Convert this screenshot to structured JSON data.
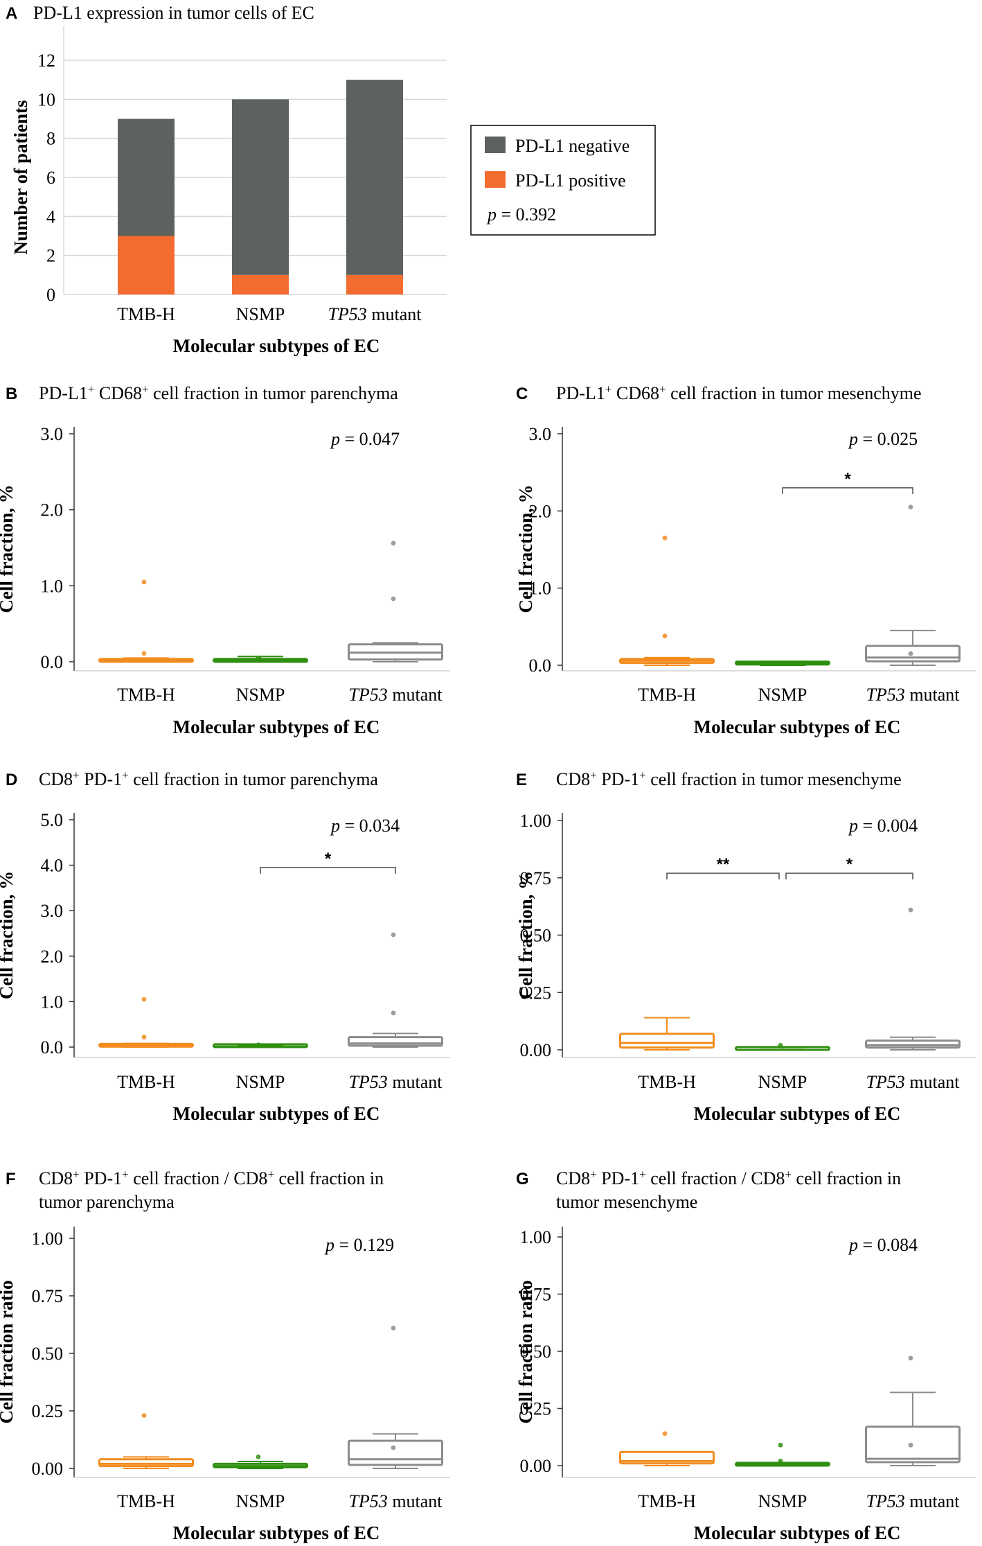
{
  "figure": {
    "xlabel": "Molecular subtypes of EC",
    "categories": [
      "TMB-H",
      "NSMP",
      "TP53 mutant"
    ],
    "colors": {
      "orange": "#f28c1e",
      "green": "#2f8f0f",
      "gray": "#8c8c8c",
      "bar_negative": "#5d625e",
      "bar_positive": "#f26c30"
    }
  },
  "chart_data": [
    {
      "panel": "A",
      "type": "bar",
      "title": "PD-L1 expression in tumor cells of EC",
      "ylabel": "Number of patients",
      "xlabel": "Molecular subtypes of EC",
      "categories": [
        "TMB-H",
        "NSMP",
        "TP53 mutant"
      ],
      "series": [
        {
          "name": "PD-L1 positive",
          "values": [
            3,
            1,
            1
          ]
        },
        {
          "name": "PD-L1 negative",
          "values": [
            6,
            9,
            10
          ]
        }
      ],
      "yticks": [
        "0",
        "2",
        "4",
        "6",
        "8",
        "10",
        "12"
      ],
      "ylim": [
        0,
        13
      ],
      "grid": true,
      "legend": {
        "items": [
          "PD-L1 negative",
          "PD-L1 positive"
        ],
        "p_prefix": "p",
        "p_value": " = 0.392"
      }
    },
    {
      "panel": "B",
      "type": "box",
      "title_parts": [
        "PD-L1",
        "+",
        " CD68",
        "+",
        " cell fraction in tumor parenchyma"
      ],
      "ylabel": "Cell fraction, %",
      "xlabel": "Molecular subtypes of EC",
      "ylim": [
        0,
        3.1
      ],
      "yticks": [
        0,
        1,
        2,
        3
      ],
      "ytick_labels": [
        "0.0",
        "1.0",
        "2.0",
        "3.0"
      ],
      "p_prefix": "p",
      "p_value": " = 0.047",
      "boxes": [
        {
          "category": "TMB-H",
          "min": 0.0,
          "q1": 0.0,
          "median": 0.02,
          "q3": 0.03,
          "max": 0.05,
          "outliers": [
            1.05,
            0.11
          ]
        },
        {
          "category": "NSMP",
          "min": 0.0,
          "q1": 0.0,
          "median": 0.02,
          "q3": 0.03,
          "max": 0.07,
          "outliers": [
            0.05
          ]
        },
        {
          "category": "TP53 mutant",
          "min": 0.0,
          "q1": 0.03,
          "median": 0.12,
          "q3": 0.23,
          "max": 0.25,
          "outliers": [
            1.56,
            0.83
          ]
        }
      ],
      "brackets": []
    },
    {
      "panel": "C",
      "type": "box",
      "title_parts": [
        "PD-L1",
        "+",
        " CD68",
        "+",
        " cell fraction in tumor mesenchyme"
      ],
      "ylabel": "Cell fraction, %",
      "xlabel": "Molecular subtypes of EC",
      "ylim": [
        0,
        3.1
      ],
      "yticks": [
        0,
        1,
        2,
        3
      ],
      "ytick_labels": [
        "0.0",
        "1.0",
        "2.0",
        "3.0"
      ],
      "p_prefix": "p",
      "p_value": " = 0.025",
      "boxes": [
        {
          "category": "TMB-H",
          "min": 0.0,
          "q1": 0.03,
          "median": 0.06,
          "q3": 0.08,
          "max": 0.1,
          "outliers": [
            1.65,
            0.38
          ]
        },
        {
          "category": "NSMP",
          "min": 0.0,
          "q1": 0.01,
          "median": 0.03,
          "q3": 0.04,
          "max": 0.05,
          "outliers": []
        },
        {
          "category": "TP53 mutant",
          "min": 0.0,
          "q1": 0.05,
          "median": 0.1,
          "q3": 0.25,
          "max": 0.45,
          "outliers": [
            2.05,
            0.15
          ]
        }
      ],
      "brackets": [
        {
          "from": 1,
          "to": 2,
          "label": "*",
          "y": 2.3
        }
      ]
    },
    {
      "panel": "D",
      "type": "box",
      "title_parts": [
        "CD8",
        "+",
        " PD-1",
        "+",
        " cell fraction in tumor parenchyma"
      ],
      "ylabel": "Cell fraction, %",
      "xlabel": "Molecular subtypes of EC",
      "ylim": [
        0,
        5.1
      ],
      "yticks": [
        0,
        1,
        2,
        3,
        4,
        5
      ],
      "ytick_labels": [
        "0.0",
        "1.0",
        "2.0",
        "3.0",
        "4.0",
        "5.0"
      ],
      "p_prefix": "p",
      "p_value": " = 0.034",
      "boxes": [
        {
          "category": "TMB-H",
          "min": 0.0,
          "q1": 0.01,
          "median": 0.03,
          "q3": 0.06,
          "max": 0.08,
          "outliers": [
            1.05,
            0.22
          ]
        },
        {
          "category": "NSMP",
          "min": 0.0,
          "q1": 0.0,
          "median": 0.01,
          "q3": 0.02,
          "max": 0.03,
          "outliers": [
            0.05
          ]
        },
        {
          "category": "TP53 mutant",
          "min": 0.0,
          "q1": 0.03,
          "median": 0.08,
          "q3": 0.22,
          "max": 0.3,
          "outliers": [
            2.47,
            0.75
          ]
        }
      ],
      "brackets": [
        {
          "from": 1,
          "to": 2,
          "label": "*",
          "y": 3.95
        }
      ]
    },
    {
      "panel": "E",
      "type": "box",
      "title_parts": [
        "CD8",
        "+",
        " PD-1",
        "+",
        " cell fraction in tumor mesenchyme"
      ],
      "ylabel": "Cell fraction, %",
      "xlabel": "Molecular subtypes of EC",
      "ylim": [
        0,
        1.02
      ],
      "yticks": [
        0,
        0.25,
        0.5,
        0.75,
        1.0
      ],
      "ytick_labels": [
        "0.00",
        "0.25",
        "0.50",
        "0.75",
        "1.00"
      ],
      "p_prefix": "p",
      "p_value": " = 0.004",
      "boxes": [
        {
          "category": "TMB-H",
          "min": 0.0,
          "q1": 0.01,
          "median": 0.03,
          "q3": 0.07,
          "max": 0.14,
          "outliers": []
        },
        {
          "category": "NSMP",
          "min": 0.0,
          "q1": 0.0,
          "median": 0.0,
          "q3": 0.005,
          "max": 0.01,
          "outliers": [
            0.02
          ]
        },
        {
          "category": "TP53 mutant",
          "min": 0.0,
          "q1": 0.01,
          "median": 0.02,
          "q3": 0.04,
          "max": 0.055,
          "outliers": [
            0.61
          ]
        }
      ],
      "brackets": [
        {
          "from": 0,
          "to": 1,
          "label": "**",
          "y": 0.77
        },
        {
          "from": 1,
          "to": 2,
          "label": "*",
          "y": 0.77
        }
      ]
    },
    {
      "panel": "F",
      "type": "box",
      "title_parts": [
        "CD8",
        "+",
        " PD-1",
        "+",
        " cell fraction / CD8",
        "+",
        " cell fraction in",
        "",
        "tumor parenchyma"
      ],
      "ylabel": "Cell fraction ratio",
      "xlabel": "Molecular subtypes of EC",
      "ylim": [
        0,
        1.02
      ],
      "yticks": [
        0,
        0.25,
        0.5,
        0.75,
        1.0
      ],
      "ytick_labels": [
        "0.00",
        "0.25",
        "0.50",
        "0.75",
        "1.00"
      ],
      "p_prefix": "p",
      "p_value": " = 0.129",
      "boxes": [
        {
          "category": "TMB-H",
          "min": 0.0,
          "q1": 0.01,
          "median": 0.02,
          "q3": 0.04,
          "max": 0.05,
          "outliers": [
            0.23
          ]
        },
        {
          "category": "NSMP",
          "min": 0.0,
          "q1": 0.005,
          "median": 0.01,
          "q3": 0.02,
          "max": 0.03,
          "outliers": [
            0.05
          ]
        },
        {
          "category": "TP53 mutant",
          "min": 0.0,
          "q1": 0.015,
          "median": 0.04,
          "q3": 0.12,
          "max": 0.15,
          "outliers": [
            0.61,
            0.09
          ]
        }
      ],
      "brackets": []
    },
    {
      "panel": "G",
      "type": "box",
      "title_parts": [
        "CD8",
        "+",
        " PD-1",
        "+",
        " cell fraction / CD8",
        "+",
        " cell fraction in",
        "",
        "tumor mesenchyme"
      ],
      "ylabel": "Cell fraction ratio",
      "xlabel": "Molecular subtypes of EC",
      "ylim": [
        0,
        1.02
      ],
      "yticks": [
        0,
        0.25,
        0.5,
        0.75,
        1.0
      ],
      "ytick_labels": [
        "0.00",
        "0.25",
        "0.50",
        "0.75",
        "1.00"
      ],
      "p_prefix": "p",
      "p_value": " = 0.084",
      "boxes": [
        {
          "category": "TMB-H",
          "min": 0.0,
          "q1": 0.01,
          "median": 0.02,
          "q3": 0.06,
          "max": 0.06,
          "outliers": [
            0.14
          ]
        },
        {
          "category": "NSMP",
          "min": 0.0,
          "q1": 0.0,
          "median": 0.005,
          "q3": 0.01,
          "max": 0.01,
          "outliers": [
            0.09,
            0.02
          ]
        },
        {
          "category": "TP53 mutant",
          "min": 0.0,
          "q1": 0.015,
          "median": 0.03,
          "q3": 0.17,
          "max": 0.32,
          "outliers": [
            0.47,
            0.09
          ]
        }
      ],
      "brackets": []
    }
  ]
}
